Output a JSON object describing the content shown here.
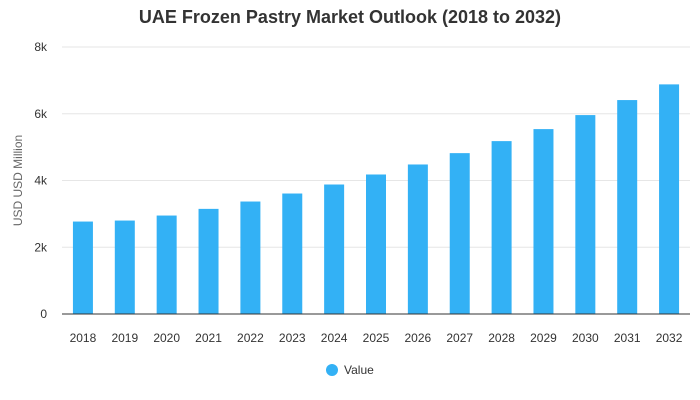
{
  "chart_data": {
    "type": "bar",
    "title": "UAE Frozen Pastry Market Outlook (2018 to 2032)",
    "xlabel": "",
    "ylabel": "USD USD Million",
    "ylim": [
      0,
      8000
    ],
    "yticks": [
      0,
      2000,
      4000,
      6000,
      8000
    ],
    "ytick_labels": [
      "0",
      "2k",
      "4k",
      "6k",
      "8k"
    ],
    "grid": true,
    "legend_position": "bottom",
    "categories": [
      "2018",
      "2019",
      "2020",
      "2021",
      "2022",
      "2023",
      "2024",
      "2025",
      "2026",
      "2027",
      "2028",
      "2029",
      "2030",
      "2031",
      "2032"
    ],
    "series": [
      {
        "name": "Value",
        "color": "#33b1f5",
        "values": [
          2770,
          2800,
          2950,
          3150,
          3370,
          3610,
          3880,
          4180,
          4480,
          4820,
          5180,
          5540,
          5960,
          6410,
          6880
        ]
      }
    ]
  }
}
